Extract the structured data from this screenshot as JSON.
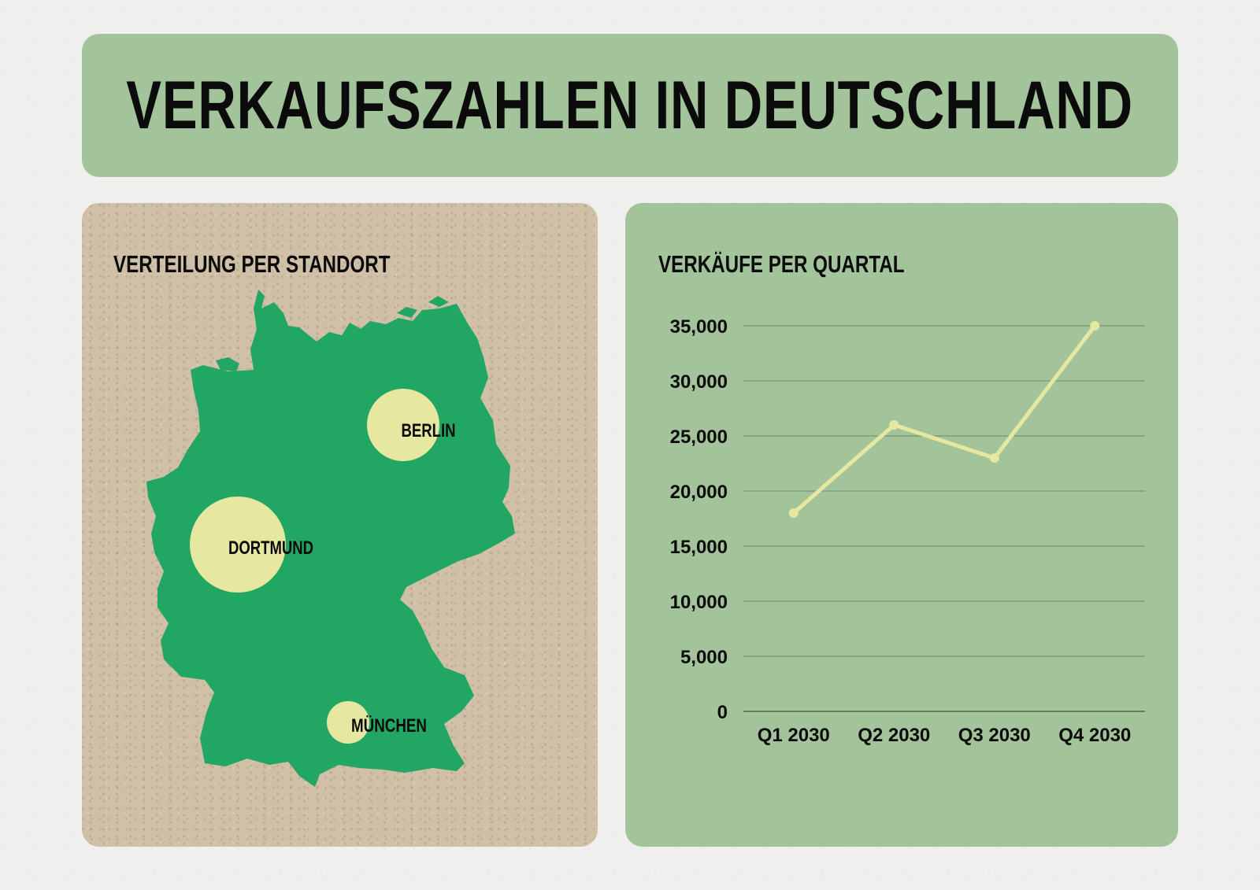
{
  "header": {
    "title": "VERKAUFSZAHLEN IN DEUTSCHLAND"
  },
  "map_panel": {
    "title": "VERTEILUNG PER STANDORT",
    "colors": {
      "land": "#22a663",
      "bubble": "#e6e7a0",
      "panel": "#cfc0a7"
    },
    "cities": [
      {
        "label": "BERLIN"
      },
      {
        "label": "DORTMUND"
      },
      {
        "label": "MÜNCHEN"
      }
    ]
  },
  "chart_panel": {
    "title": "VERKÄUFE PER QUARTAL",
    "colors": {
      "line": "#e6e7a0",
      "grid": "#6f8a68",
      "axis": "#4f6749"
    }
  },
  "chart_data": {
    "type": "line",
    "title": "VERKÄUFE PER QUARTAL",
    "categories": [
      "Q1 2030",
      "Q2 2030",
      "Q3 2030",
      "Q4 2030"
    ],
    "series": [
      {
        "values": [
          18000,
          26000,
          23000,
          35000
        ]
      }
    ],
    "ylim": [
      0,
      35000
    ],
    "yticks": [
      0,
      5000,
      10000,
      15000,
      20000,
      25000,
      30000,
      35000
    ],
    "ytick_labels": [
      "0",
      "5,000",
      "10,000",
      "15,000",
      "20,000",
      "25,000",
      "30,000",
      "35,000"
    ],
    "grid": true,
    "xlabel": "",
    "ylabel": ""
  }
}
